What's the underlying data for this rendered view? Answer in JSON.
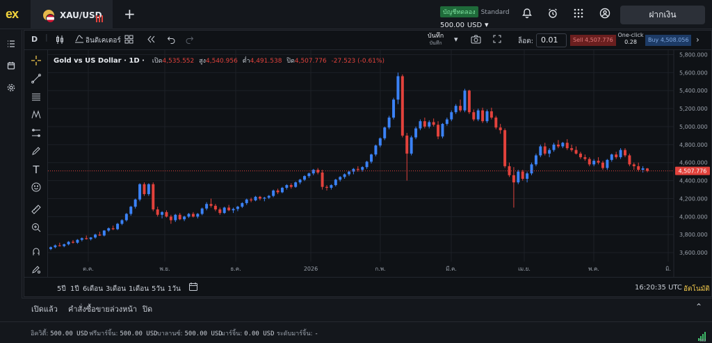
{
  "brand": {
    "logo_text": "ex"
  },
  "tab": {
    "symbol": "XAU/USD"
  },
  "account": {
    "badge": "บัญชีทดลอง",
    "type": "Standard",
    "balance": "500.00",
    "currency": "USD"
  },
  "header": {
    "deposit_label": "ฝากเงิน"
  },
  "toolbar": {
    "symbol_short": "D",
    "indicators_label": "อินดิเคเตอร์",
    "period_line1": "บันทึก",
    "period_line2": "บันทึก",
    "lot_label": "ล็อต:",
    "lot_value": "0.01",
    "sell_label": "Sell 4,507.776",
    "one_click_label": "One-click",
    "spread_value": "0.28",
    "buy_label": "Buy 4,508.056"
  },
  "legend": {
    "title": "Gold vs US Dollar · 1D ·",
    "open_label": "เปิด",
    "open": "4,535.552",
    "high_label": "สูง",
    "high": "4,540.956",
    "low_label": "ต่ำ",
    "low": "4,491.538",
    "close_label": "ปิด",
    "close": "4,507.776",
    "change": "-27.523 (-0.61%)"
  },
  "bottom": {
    "ranges": [
      "5ปี",
      "1ปี",
      "6เดือน",
      "3เดือน",
      "1เดือน",
      "5วัน",
      "1วัน"
    ],
    "clock": "16:20:35 UTC",
    "auto_label": "อัตโนมัติ"
  },
  "panel": {
    "tabs": [
      "เปิดแล้ว",
      "คำสั่งซื้อขายล่วงหน้า",
      "ปิด"
    ]
  },
  "status": {
    "equity_label": "อิควิตี้:",
    "equity": "500.00 USD",
    "free_margin_label": "ฟรีมาร์จิ้น:",
    "free_margin": "500.00 USD",
    "balance_label": "บาลานซ์:",
    "balance": "500.00 USD",
    "margin_label": "มาร์จิ้น:",
    "margin": "0.00 USD",
    "margin_level_label": "ระดับมาร์จิ้น:",
    "margin_level": "-",
    "signal_label": "582"
  },
  "colors": {
    "up": "#3b82f6",
    "down": "#e2423c",
    "accent": "#f2d43c",
    "price_tag": "#e2423c"
  },
  "chart_data": {
    "type": "candlestick",
    "title": "Gold vs US Dollar · 1D",
    "x_tick_labels": [
      "ต.ค.",
      "พ.ย.",
      "ธ.ค.",
      "2026",
      "ก.พ.",
      "มี.ค.",
      "เม.ย.",
      "พ.ค.",
      "มิ."
    ],
    "y_tick_labels": [
      "3,600.000",
      "3,800.000",
      "4,000.000",
      "4,200.000",
      "4,400.000",
      "4,600.000",
      "4,800.000",
      "5,000.000",
      "5,200.000",
      "5,400.000",
      "5,600.000",
      "5,800.000"
    ],
    "ylim": [
      3500,
      5850
    ],
    "current_price_label": "4,507.776",
    "candles": [
      [
        3640,
        3668,
        3628,
        3660
      ],
      [
        3660,
        3690,
        3648,
        3680
      ],
      [
        3680,
        3710,
        3668,
        3672
      ],
      [
        3672,
        3700,
        3660,
        3692
      ],
      [
        3692,
        3728,
        3680,
        3720
      ],
      [
        3720,
        3740,
        3700,
        3710
      ],
      [
        3710,
        3750,
        3698,
        3742
      ],
      [
        3742,
        3768,
        3725,
        3760
      ],
      [
        3760,
        3790,
        3745,
        3750
      ],
      [
        3750,
        3772,
        3735,
        3768
      ],
      [
        3768,
        3810,
        3755,
        3800
      ],
      [
        3800,
        3832,
        3785,
        3790
      ],
      [
        3790,
        3850,
        3780,
        3845
      ],
      [
        3845,
        3880,
        3830,
        3870
      ],
      [
        3870,
        3900,
        3850,
        3860
      ],
      [
        3860,
        3930,
        3850,
        3920
      ],
      [
        3920,
        3970,
        3905,
        3960
      ],
      [
        3960,
        4040,
        3945,
        4030
      ],
      [
        4030,
        4120,
        4010,
        4110
      ],
      [
        4110,
        4200,
        4090,
        4190
      ],
      [
        4190,
        4370,
        4170,
        4360
      ],
      [
        4360,
        4380,
        4230,
        4250
      ],
      [
        4250,
        4370,
        4230,
        4360
      ],
      [
        4360,
        4380,
        4060,
        4080
      ],
      [
        4080,
        4110,
        4000,
        4020
      ],
      [
        4020,
        4060,
        3980,
        4050
      ],
      [
        4050,
        4070,
        3990,
        4000
      ],
      [
        4000,
        4020,
        3920,
        3960
      ],
      [
        3960,
        4030,
        3940,
        4020
      ],
      [
        4020,
        4040,
        3960,
        3970
      ],
      [
        3970,
        4010,
        3950,
        4000
      ],
      [
        4000,
        4040,
        3985,
        4030
      ],
      [
        4030,
        4050,
        3990,
        4000
      ],
      [
        4000,
        4040,
        3980,
        4030
      ],
      [
        4030,
        4100,
        4015,
        4090
      ],
      [
        4090,
        4160,
        4070,
        4140
      ],
      [
        4140,
        4200,
        4100,
        4120
      ],
      [
        4120,
        4140,
        4060,
        4080
      ],
      [
        4080,
        4100,
        4020,
        4040
      ],
      [
        4040,
        4110,
        4030,
        4100
      ],
      [
        4100,
        4130,
        4060,
        4070
      ],
      [
        4070,
        4100,
        4040,
        4085
      ],
      [
        4085,
        4120,
        4060,
        4110
      ],
      [
        4110,
        4160,
        4095,
        4150
      ],
      [
        4150,
        4200,
        4130,
        4190
      ],
      [
        4190,
        4210,
        4160,
        4180
      ],
      [
        4180,
        4230,
        4170,
        4220
      ],
      [
        4220,
        4230,
        4180,
        4200
      ],
      [
        4200,
        4220,
        4170,
        4210
      ],
      [
        4210,
        4240,
        4195,
        4230
      ],
      [
        4230,
        4300,
        4215,
        4290
      ],
      [
        4290,
        4310,
        4250,
        4270
      ],
      [
        4270,
        4330,
        4260,
        4320
      ],
      [
        4320,
        4360,
        4300,
        4350
      ],
      [
        4350,
        4370,
        4310,
        4330
      ],
      [
        4330,
        4390,
        4320,
        4380
      ],
      [
        4380,
        4420,
        4360,
        4410
      ],
      [
        4410,
        4460,
        4395,
        4450
      ],
      [
        4450,
        4490,
        4430,
        4480
      ],
      [
        4480,
        4530,
        4460,
        4520
      ],
      [
        4520,
        4540,
        4470,
        4490
      ],
      [
        4490,
        4520,
        4300,
        4330
      ],
      [
        4330,
        4350,
        4290,
        4320
      ],
      [
        4320,
        4360,
        4300,
        4350
      ],
      [
        4350,
        4420,
        4335,
        4410
      ],
      [
        4410,
        4450,
        4390,
        4440
      ],
      [
        4440,
        4480,
        4420,
        4470
      ],
      [
        4470,
        4510,
        4450,
        4500
      ],
      [
        4500,
        4540,
        4470,
        4530
      ],
      [
        4530,
        4560,
        4500,
        4520
      ],
      [
        4520,
        4560,
        4500,
        4550
      ],
      [
        4550,
        4620,
        4530,
        4610
      ],
      [
        4610,
        4700,
        4590,
        4690
      ],
      [
        4690,
        4800,
        4670,
        4790
      ],
      [
        4790,
        4880,
        4770,
        4870
      ],
      [
        4870,
        5000,
        4850,
        4990
      ],
      [
        4990,
        5120,
        4970,
        5100
      ],
      [
        5100,
        5320,
        5080,
        5300
      ],
      [
        5300,
        5600,
        5250,
        5560
      ],
      [
        5560,
        5580,
        4880,
        4900
      ],
      [
        4900,
        4930,
        4400,
        4700
      ],
      [
        4700,
        4900,
        4680,
        4880
      ],
      [
        4880,
        5000,
        4860,
        4980
      ],
      [
        4980,
        5080,
        4960,
        5060
      ],
      [
        5060,
        5100,
        4980,
        5000
      ],
      [
        5000,
        5070,
        4980,
        5050
      ],
      [
        5050,
        5090,
        5000,
        5020
      ],
      [
        5020,
        5060,
        4860,
        4890
      ],
      [
        4890,
        5040,
        4870,
        5030
      ],
      [
        5030,
        5100,
        5010,
        5080
      ],
      [
        5080,
        5180,
        5060,
        5160
      ],
      [
        5160,
        5250,
        5140,
        5230
      ],
      [
        5230,
        5300,
        5160,
        5180
      ],
      [
        5180,
        5420,
        5160,
        5400
      ],
      [
        5400,
        5410,
        5140,
        5160
      ],
      [
        5160,
        5190,
        5060,
        5080
      ],
      [
        5080,
        5200,
        5060,
        5180
      ],
      [
        5180,
        5210,
        5040,
        5060
      ],
      [
        5060,
        5190,
        5040,
        5170
      ],
      [
        5170,
        5210,
        5080,
        5100
      ],
      [
        5100,
        5120,
        4970,
        4990
      ],
      [
        4990,
        5030,
        4920,
        4960
      ],
      [
        4960,
        4980,
        4540,
        4560
      ],
      [
        4560,
        4600,
        4440,
        4460
      ],
      [
        4460,
        4550,
        4100,
        4380
      ],
      [
        4380,
        4520,
        4360,
        4500
      ],
      [
        4500,
        4520,
        4400,
        4420
      ],
      [
        4420,
        4500,
        4380,
        4480
      ],
      [
        4480,
        4600,
        4460,
        4580
      ],
      [
        4580,
        4700,
        4560,
        4680
      ],
      [
        4680,
        4800,
        4660,
        4780
      ],
      [
        4780,
        4820,
        4680,
        4700
      ],
      [
        4700,
        4760,
        4660,
        4740
      ],
      [
        4740,
        4820,
        4720,
        4800
      ],
      [
        4800,
        4850,
        4760,
        4780
      ],
      [
        4780,
        4830,
        4760,
        4820
      ],
      [
        4820,
        4860,
        4740,
        4760
      ],
      [
        4760,
        4800,
        4720,
        4740
      ],
      [
        4740,
        4780,
        4690,
        4700
      ],
      [
        4700,
        4720,
        4640,
        4660
      ],
      [
        4660,
        4690,
        4620,
        4640
      ],
      [
        4640,
        4660,
        4560,
        4580
      ],
      [
        4580,
        4640,
        4560,
        4620
      ],
      [
        4620,
        4660,
        4580,
        4600
      ],
      [
        4600,
        4620,
        4520,
        4540
      ],
      [
        4540,
        4640,
        4520,
        4630
      ],
      [
        4630,
        4700,
        4610,
        4690
      ],
      [
        4690,
        4720,
        4640,
        4660
      ],
      [
        4660,
        4760,
        4640,
        4740
      ],
      [
        4740,
        4760,
        4660,
        4680
      ],
      [
        4680,
        4700,
        4560,
        4580
      ],
      [
        4580,
        4600,
        4520,
        4560
      ],
      [
        4560,
        4600,
        4500,
        4520
      ],
      [
        4520,
        4560,
        4490,
        4536
      ],
      [
        4535,
        4541,
        4492,
        4508
      ]
    ]
  }
}
